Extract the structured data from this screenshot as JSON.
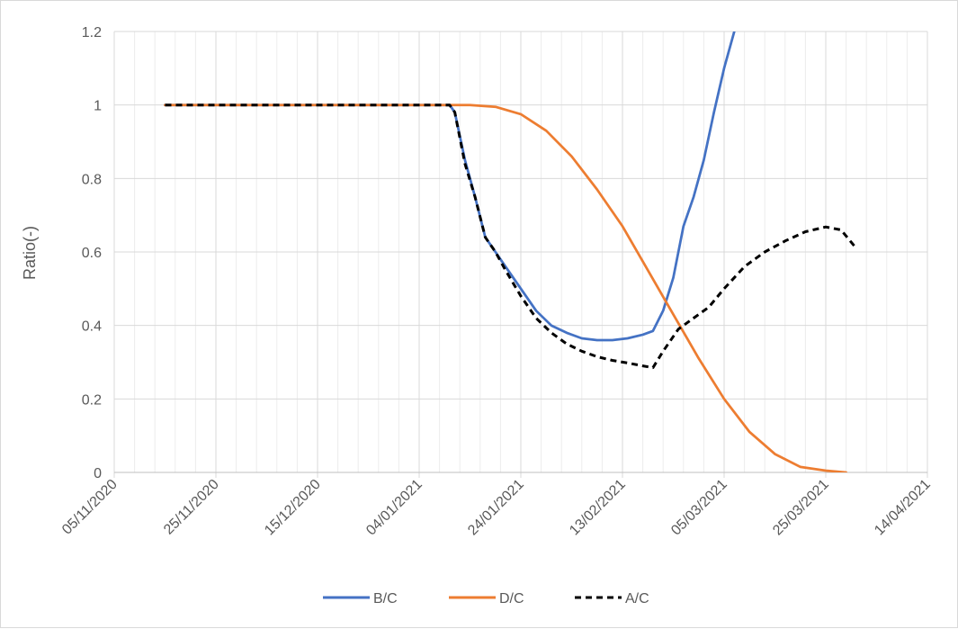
{
  "chart_data": {
    "type": "line",
    "title": "",
    "xlabel": "",
    "ylabel": "Ratio(-)",
    "xlim": [
      "05/11/2020",
      "14/04/2021"
    ],
    "ylim": [
      0,
      1.2
    ],
    "x_ticks": [
      "05/11/2020",
      "25/11/2020",
      "15/12/2020",
      "04/01/2021",
      "24/01/2021",
      "13/02/2021",
      "05/03/2021",
      "25/03/2021",
      "14/04/2021"
    ],
    "y_ticks": [
      "0",
      "0.2",
      "0.4",
      "0.6",
      "0.8",
      "1",
      "1.2"
    ],
    "grid": true,
    "minor_grid_x_days": 4,
    "legend": "bottom",
    "series": [
      {
        "name": "B/C",
        "color": "#4472c4",
        "dash": "solid",
        "x": [
          "15/11/2020",
          "25/11/2020",
          "05/12/2020",
          "15/12/2020",
          "25/12/2020",
          "04/01/2021",
          "10/01/2021",
          "11/01/2021",
          "13/01/2021",
          "15/01/2021",
          "17/01/2021",
          "19/01/2021",
          "21/01/2021",
          "24/01/2021",
          "27/01/2021",
          "30/01/2021",
          "02/02/2021",
          "05/02/2021",
          "08/02/2021",
          "11/02/2021",
          "14/02/2021",
          "17/02/2021",
          "19/02/2021",
          "21/02/2021",
          "23/02/2021",
          "25/02/2021",
          "27/02/2021",
          "01/03/2021",
          "03/03/2021",
          "05/03/2021",
          "07/03/2021"
        ],
        "y": [
          1.0,
          1.0,
          1.0,
          1.0,
          1.0,
          1.0,
          1.0,
          0.98,
          0.85,
          0.75,
          0.64,
          0.6,
          0.56,
          0.5,
          0.44,
          0.4,
          0.38,
          0.365,
          0.36,
          0.36,
          0.365,
          0.375,
          0.385,
          0.44,
          0.53,
          0.67,
          0.75,
          0.85,
          0.98,
          1.1,
          1.2
        ]
      },
      {
        "name": "D/C",
        "color": "#ed7d31",
        "dash": "solid",
        "x": [
          "15/11/2020",
          "25/11/2020",
          "05/12/2020",
          "15/12/2020",
          "25/12/2020",
          "04/01/2021",
          "14/01/2021",
          "19/01/2021",
          "24/01/2021",
          "29/01/2021",
          "03/02/2021",
          "08/02/2021",
          "13/02/2021",
          "18/02/2021",
          "23/02/2021",
          "28/02/2021",
          "05/03/2021",
          "10/03/2021",
          "15/03/2021",
          "20/03/2021",
          "25/03/2021",
          "29/03/2021"
        ],
        "y": [
          1.0,
          1.0,
          1.0,
          1.0,
          1.0,
          1.0,
          1.0,
          0.995,
          0.975,
          0.93,
          0.86,
          0.77,
          0.67,
          0.55,
          0.43,
          0.31,
          0.2,
          0.11,
          0.05,
          0.015,
          0.005,
          0.0
        ]
      },
      {
        "name": "A/C",
        "color": "#000000",
        "dash": "dashed",
        "x": [
          "15/11/2020",
          "25/11/2020",
          "05/12/2020",
          "15/12/2020",
          "25/12/2020",
          "04/01/2021",
          "10/01/2021",
          "11/01/2021",
          "13/01/2021",
          "15/01/2021",
          "17/01/2021",
          "19/01/2021",
          "21/01/2021",
          "24/01/2021",
          "27/01/2021",
          "30/01/2021",
          "02/02/2021",
          "05/02/2021",
          "08/02/2021",
          "11/02/2021",
          "14/02/2021",
          "17/02/2021",
          "19/02/2021",
          "21/02/2021",
          "24/02/2021",
          "27/02/2021",
          "02/03/2021",
          "05/03/2021",
          "09/03/2021",
          "13/03/2021",
          "17/03/2021",
          "21/03/2021",
          "25/03/2021",
          "28/03/2021",
          "31/03/2021"
        ],
        "y": [
          1.0,
          1.0,
          1.0,
          1.0,
          1.0,
          1.0,
          1.0,
          0.98,
          0.84,
          0.75,
          0.64,
          0.6,
          0.55,
          0.48,
          0.42,
          0.38,
          0.35,
          0.33,
          0.315,
          0.305,
          0.298,
          0.29,
          0.285,
          0.33,
          0.39,
          0.42,
          0.45,
          0.5,
          0.56,
          0.6,
          0.63,
          0.655,
          0.668,
          0.66,
          0.61
        ]
      }
    ]
  }
}
